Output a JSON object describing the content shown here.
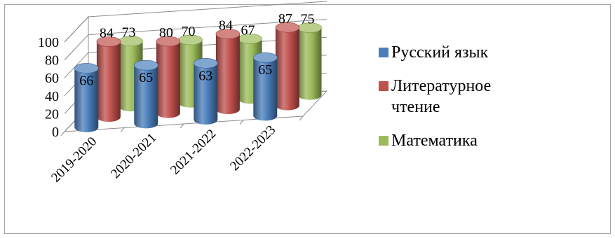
{
  "chart_data": {
    "type": "bar",
    "variant": "3d-cylinder",
    "title": "",
    "xlabel": "",
    "ylabel": "",
    "ylim": [
      0,
      100
    ],
    "yticks": [
      0,
      20,
      40,
      60,
      80,
      100
    ],
    "categories": [
      "2019-2020",
      "2020-2021",
      "2021-2022",
      "2022-2023"
    ],
    "series": [
      {
        "name": "Русский язык",
        "color": "#4a7ebb",
        "values": [
          66,
          65,
          63,
          65
        ]
      },
      {
        "name": "Литературное чтение",
        "color": "#c0504d",
        "values": [
          84,
          80,
          84,
          87
        ]
      },
      {
        "name": "Математика",
        "color": "#9bbb59",
        "values": [
          73,
          70,
          67,
          75
        ]
      }
    ],
    "legend_position": "right",
    "gridlines": true
  }
}
